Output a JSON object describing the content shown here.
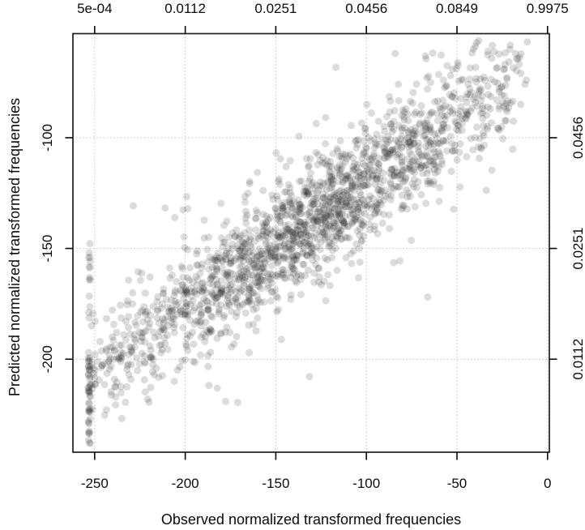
{
  "chart_data": {
    "type": "scatter",
    "title": "",
    "xlabel": "Observed normalized transformed frequencies",
    "ylabel": "Predicted normalized transformed frequencies",
    "xlim": [
      -262,
      1
    ],
    "ylim": [
      -242,
      -53
    ],
    "grid": {
      "show": true,
      "style": "dotted",
      "color": "#c9c9c9"
    },
    "frame_color": "#1f1f1f",
    "tick_color": "#0a0a0a",
    "axes": {
      "bottom": {
        "tick_values": [
          -250,
          -200,
          -150,
          -100,
          -50,
          0
        ],
        "tick_labels": [
          "-250",
          "-200",
          "-150",
          "-100",
          "-50",
          "0"
        ]
      },
      "top": {
        "tick_values": [
          -250,
          -200,
          -150,
          -100,
          -50,
          0
        ],
        "tick_labels": [
          "5e-04",
          "0.0112",
          "0.0251",
          "0.0456",
          "0.0849",
          "0.9975"
        ]
      },
      "left": {
        "tick_values": [
          -100,
          -150,
          -200
        ],
        "tick_labels": [
          "-100",
          "-150",
          "-200"
        ]
      },
      "right": {
        "tick_values": [
          -100,
          -150,
          -200
        ],
        "tick_labels": [
          "0.0456",
          "0.0251",
          "0.0112"
        ]
      }
    },
    "points": {
      "style": {
        "shape": "circle",
        "radius_px": 4.5,
        "color": "#141414",
        "opacity": 0.15
      },
      "seed": 42,
      "trend": {
        "slope": 0.57,
        "intercept": -63,
        "noise_sd": 13,
        "fat_tail_prob": 0.06,
        "fat_tail_mult": 2.1
      },
      "main_cloud": {
        "n": 1850,
        "x_min": -253,
        "x_max": -11,
        "center_bias": 0.7,
        "y_min": -239,
        "y_max": -56
      },
      "left_column": {
        "n": 58,
        "x": -253,
        "x_jitter": 0.6,
        "segments": [
          {
            "weight": 0.55,
            "y_from": -196,
            "y_to": -224
          },
          {
            "weight": 0.3,
            "y_from": -137,
            "y_to": -196
          },
          {
            "weight": 0.15,
            "y_from": -224,
            "y_to": -238
          }
        ]
      }
    }
  }
}
